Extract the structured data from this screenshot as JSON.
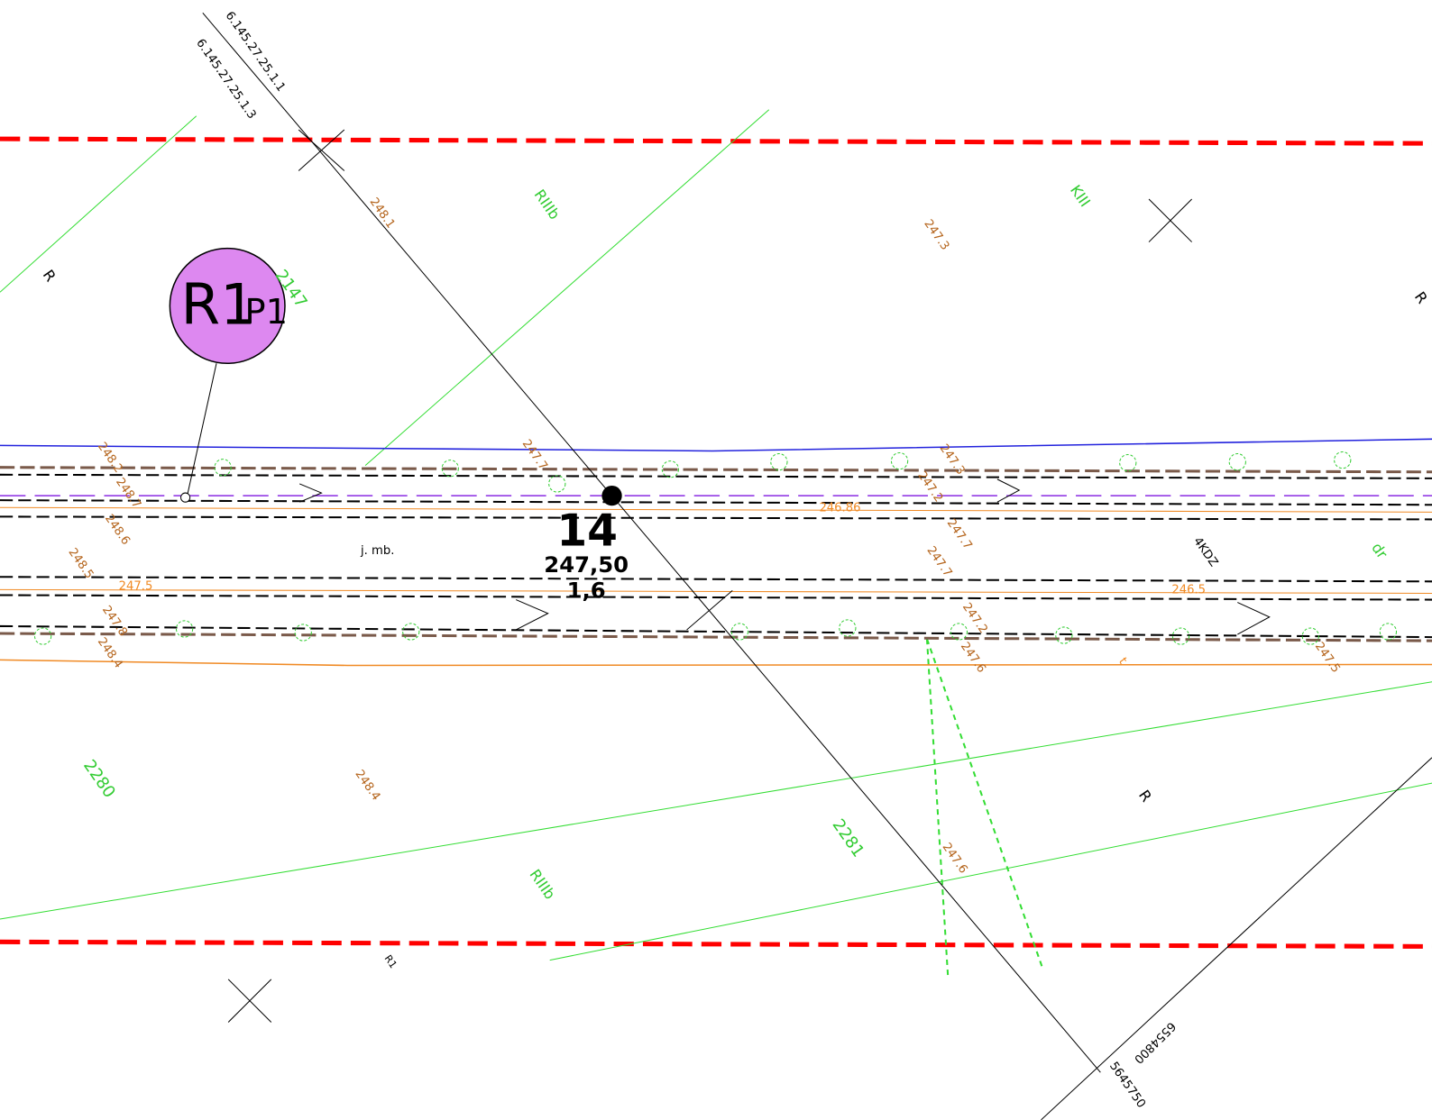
{
  "labels": [
    "6.145.27.25.1.1",
    "6.145.27.25.1.3",
    "248.1",
    "RIIIb",
    "KIII",
    "247.3",
    "R",
    "R",
    "2147",
    "R1",
    "P1",
    "248.2",
    "248.7",
    "248.6",
    "247.7",
    "247.3",
    "247.2",
    "246.86",
    "14",
    "247,50",
    "1,6",
    "j. mb.",
    "247.7",
    "4KDZ",
    "dr",
    "248.5",
    "247.5",
    "247.7",
    "246.5",
    "247.8",
    "247.2",
    "248.4",
    "247.6",
    "t",
    "247.5",
    "2280",
    "248.4",
    "R",
    "2281",
    "247.6",
    "RIIIb",
    "R1",
    "6554800",
    "5645750"
  ]
}
